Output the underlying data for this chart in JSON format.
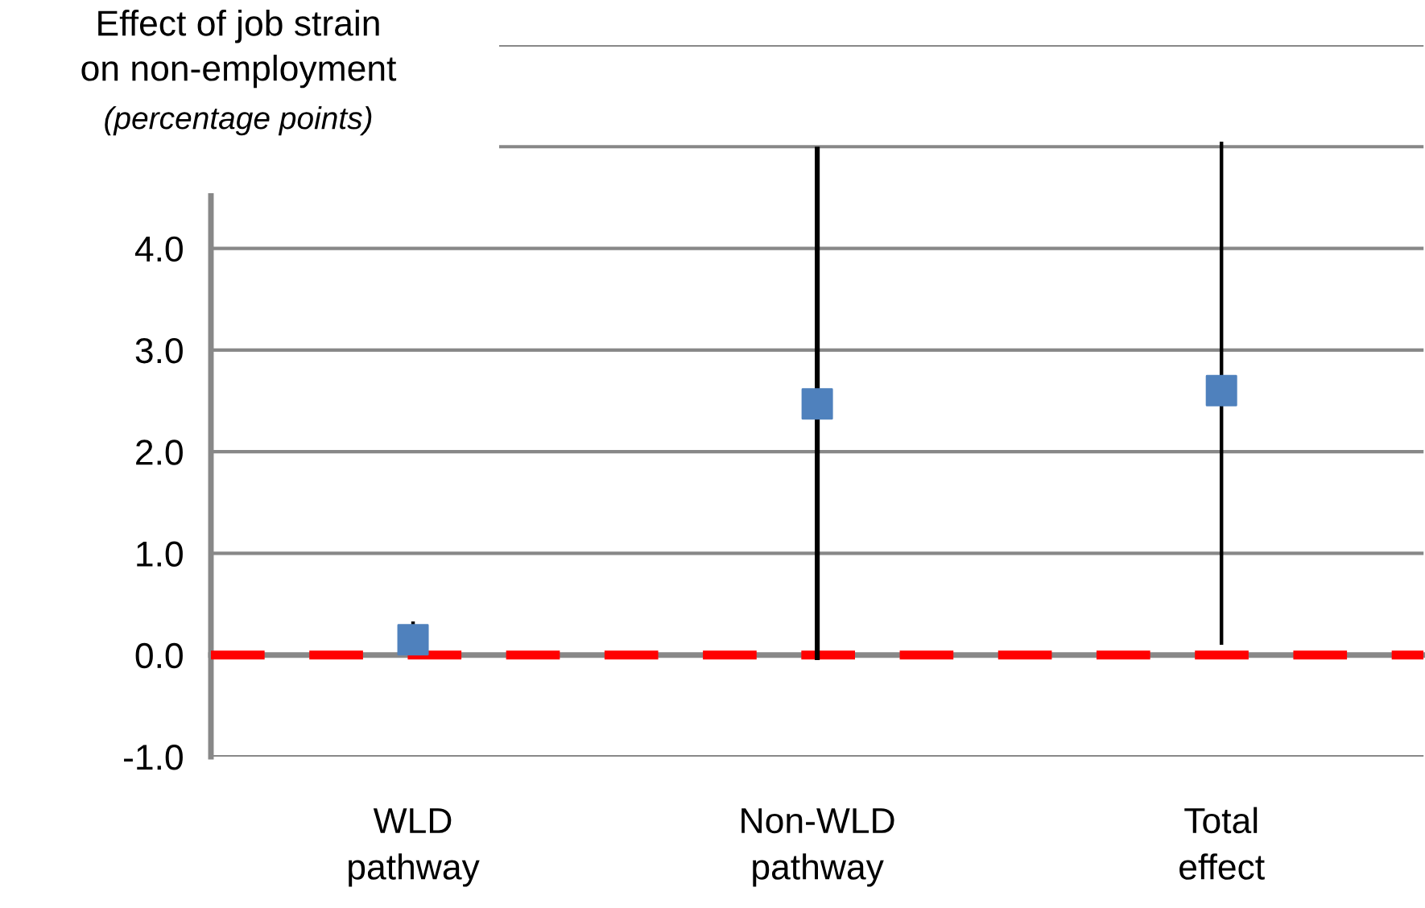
{
  "chart_data": {
    "type": "scatter",
    "title": "Effect of job strain on non-employment",
    "subtitle": "(percentage points)",
    "categories": [
      "WLD pathway",
      "Non-WLD pathway",
      "Total effect"
    ],
    "series": [
      {
        "color": "#4f81bd",
        "values": [
          0.15,
          2.47,
          2.6
        ],
        "errors": [
          [
            0.0,
            0.33
          ],
          [
            -0.05,
            5.0
          ],
          [
            0.1,
            5.05
          ]
        ]
      }
    ],
    "marker": "square",
    "ylim": [
      -1,
      6
    ],
    "yticks": [
      {
        "value": -1,
        "label": "-1.0"
      },
      {
        "value": 0,
        "label": "0.0"
      },
      {
        "value": 1,
        "label": "1.0"
      },
      {
        "value": 2,
        "label": "2.0"
      },
      {
        "value": 3,
        "label": "3.0"
      },
      {
        "value": 4,
        "label": "4.0"
      },
      {
        "value": 5,
        "label": null
      },
      {
        "value": 6,
        "label": null
      }
    ],
    "ref_lines": [
      {
        "axis": "y",
        "value": 0,
        "color": "#ff0000",
        "line_style": "dashed"
      }
    ],
    "grid": "y",
    "legend": false
  }
}
